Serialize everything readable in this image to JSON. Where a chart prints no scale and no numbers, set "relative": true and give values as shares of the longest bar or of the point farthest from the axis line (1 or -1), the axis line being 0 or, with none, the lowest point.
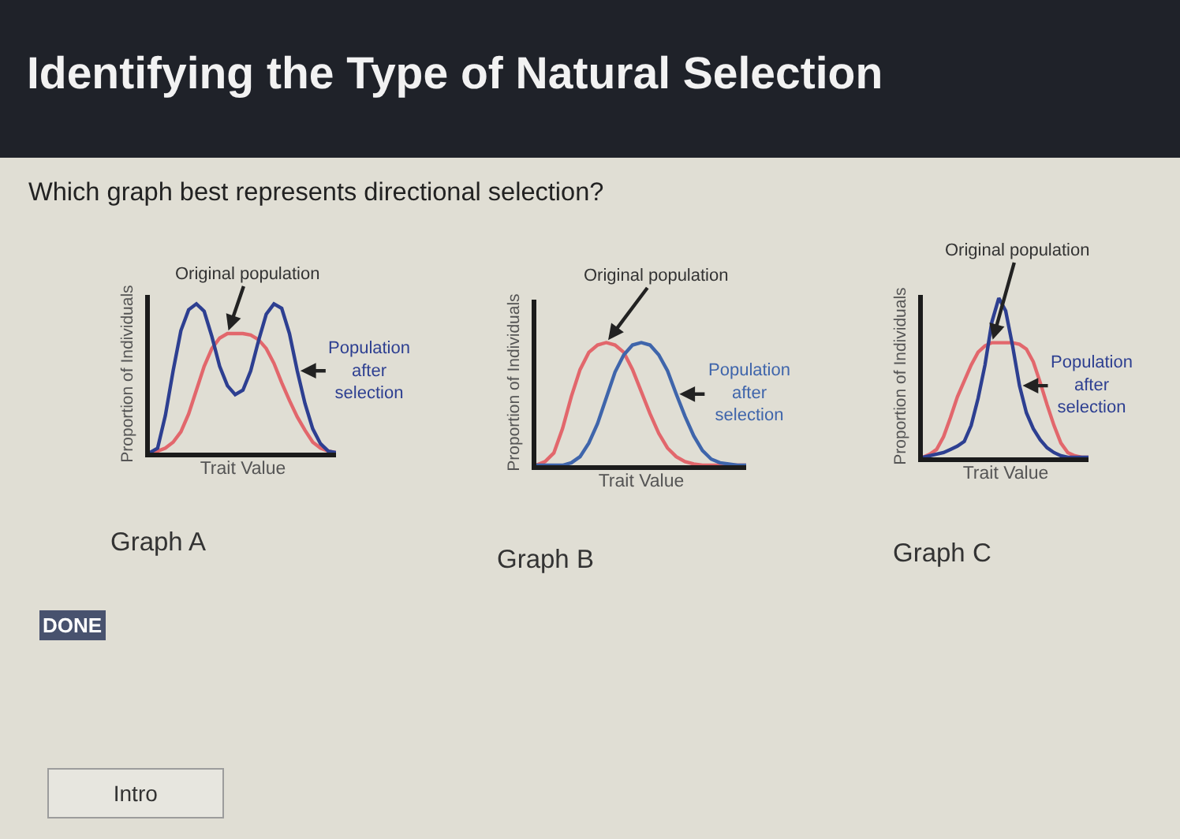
{
  "chart_data": [
    {
      "type": "other",
      "title": "Identifying the Type of Natural Selection",
      "subtitle": "Which graph best represents directional selection?",
      "annotations": [
        "DONE",
        "Intro"
      ]
    },
    {
      "type": "line",
      "relative": true,
      "xlabel": "Trait Value",
      "ylabel": "Proportion of Individuals",
      "annotations": [
        "Graph A"
      ],
      "categories": [
        null,
        null,
        null,
        null,
        null,
        null,
        null,
        null,
        null,
        null,
        null,
        null,
        null,
        null,
        null,
        null,
        null,
        null,
        null,
        null,
        null,
        null,
        null,
        null,
        null
      ],
      "series": [
        {
          "name": "Original population",
          "color": "#e2676c",
          "values": [
            0,
            0.01,
            0.03,
            0.07,
            0.14,
            0.26,
            0.42,
            0.58,
            0.7,
            0.77,
            0.8,
            0.8,
            0.8,
            0.79,
            0.76,
            0.7,
            0.6,
            0.47,
            0.35,
            0.24,
            0.15,
            0.07,
            0.03,
            0.01,
            0
          ]
        },
        {
          "name": "Population after selection",
          "color": "#2d3f91",
          "values": [
            0,
            0.03,
            0.25,
            0.55,
            0.82,
            0.96,
            1,
            0.95,
            0.78,
            0.58,
            0.45,
            0.39,
            0.42,
            0.55,
            0.75,
            0.93,
            1,
            0.97,
            0.8,
            0.55,
            0.33,
            0.16,
            0.06,
            0.01,
            0
          ]
        }
      ]
    },
    {
      "type": "line",
      "relative": true,
      "xlabel": "Trait Value",
      "ylabel": "Proportion of Individuals",
      "annotations": [
        "Graph B"
      ],
      "categories": [
        null,
        null,
        null,
        null,
        null,
        null,
        null,
        null,
        null,
        null,
        null,
        null,
        null,
        null,
        null,
        null,
        null,
        null,
        null,
        null,
        null,
        null,
        null,
        null,
        null
      ],
      "series": [
        {
          "name": "Original population",
          "color": "#e2676c",
          "values": [
            0,
            0.03,
            0.1,
            0.3,
            0.56,
            0.78,
            0.92,
            0.98,
            1,
            0.98,
            0.92,
            0.78,
            0.6,
            0.42,
            0.26,
            0.14,
            0.07,
            0.03,
            0.01,
            0,
            0,
            0,
            0,
            0,
            0
          ]
        },
        {
          "name": "Population after selection",
          "color": "#3f65ab",
          "values": [
            0,
            0,
            0,
            0,
            0.02,
            0.07,
            0.18,
            0.34,
            0.55,
            0.76,
            0.9,
            0.98,
            1,
            0.98,
            0.9,
            0.77,
            0.58,
            0.4,
            0.24,
            0.12,
            0.05,
            0.02,
            0.01,
            0,
            0
          ]
        }
      ]
    },
    {
      "type": "line",
      "relative": true,
      "xlabel": "Trait Value",
      "ylabel": "Proportion of Individuals",
      "annotations": [
        "Graph C"
      ],
      "categories": [
        null,
        null,
        null,
        null,
        null,
        null,
        null,
        null,
        null,
        null,
        null,
        null,
        null,
        null,
        null,
        null,
        null,
        null,
        null,
        null,
        null,
        null,
        null,
        null,
        null
      ],
      "series": [
        {
          "name": "Original population",
          "color": "#e2676c",
          "values": [
            0,
            0.02,
            0.05,
            0.13,
            0.25,
            0.38,
            0.48,
            0.58,
            0.66,
            0.7,
            0.72,
            0.72,
            0.72,
            0.72,
            0.71,
            0.68,
            0.6,
            0.47,
            0.33,
            0.2,
            0.09,
            0.03,
            0.01,
            0,
            0
          ]
        },
        {
          "name": "Population after selection",
          "color": "#2d3f91",
          "values": [
            0,
            0.01,
            0.02,
            0.03,
            0.05,
            0.07,
            0.1,
            0.2,
            0.37,
            0.58,
            0.85,
            1,
            0.92,
            0.7,
            0.45,
            0.28,
            0.18,
            0.11,
            0.06,
            0.03,
            0.01,
            0,
            0,
            0,
            0
          ]
        }
      ]
    }
  ]
}
